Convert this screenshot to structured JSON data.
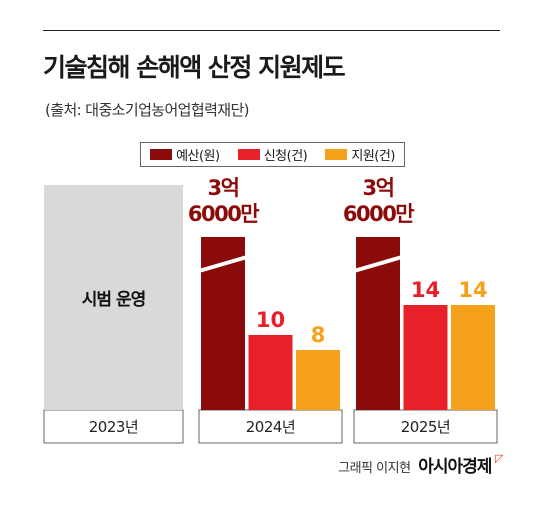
{
  "header": {
    "title": "기술침해 손해액 산정 지원제도",
    "source": "(출처: 대중소기업농어업협력재단)"
  },
  "legend": [
    {
      "label": "예산(원)",
      "color": "#8b0a0a"
    },
    {
      "label": "신청(건)",
      "color": "#e8202a"
    },
    {
      "label": "지원(건)",
      "color": "#f5a11c"
    }
  ],
  "credit": {
    "text": "그래픽 이지현",
    "brand": "아시아경제"
  },
  "chart_data": {
    "type": "bar",
    "categories": [
      "2023년",
      "2024년",
      "2025년"
    ],
    "placeholder": {
      "category": "2023년",
      "label": "시범 운영",
      "color": "#d9d9d9"
    },
    "series": [
      {
        "name": "예산(원)",
        "values": [
          null,
          360000000,
          360000000
        ],
        "labels": [
          null,
          "3억\n6000만",
          "3억\n6000만"
        ],
        "color": "#8b0a0a",
        "axis_break": true
      },
      {
        "name": "신청(건)",
        "values": [
          null,
          10,
          14
        ],
        "labels": [
          null,
          "10",
          "14"
        ],
        "color": "#e8202a"
      },
      {
        "name": "지원(건)",
        "values": [
          null,
          8,
          14
        ],
        "labels": [
          null,
          "8",
          "14"
        ],
        "color": "#f5a11c"
      }
    ],
    "ylim": [
      0,
      20
    ],
    "grid": false,
    "legend_position": "top"
  }
}
